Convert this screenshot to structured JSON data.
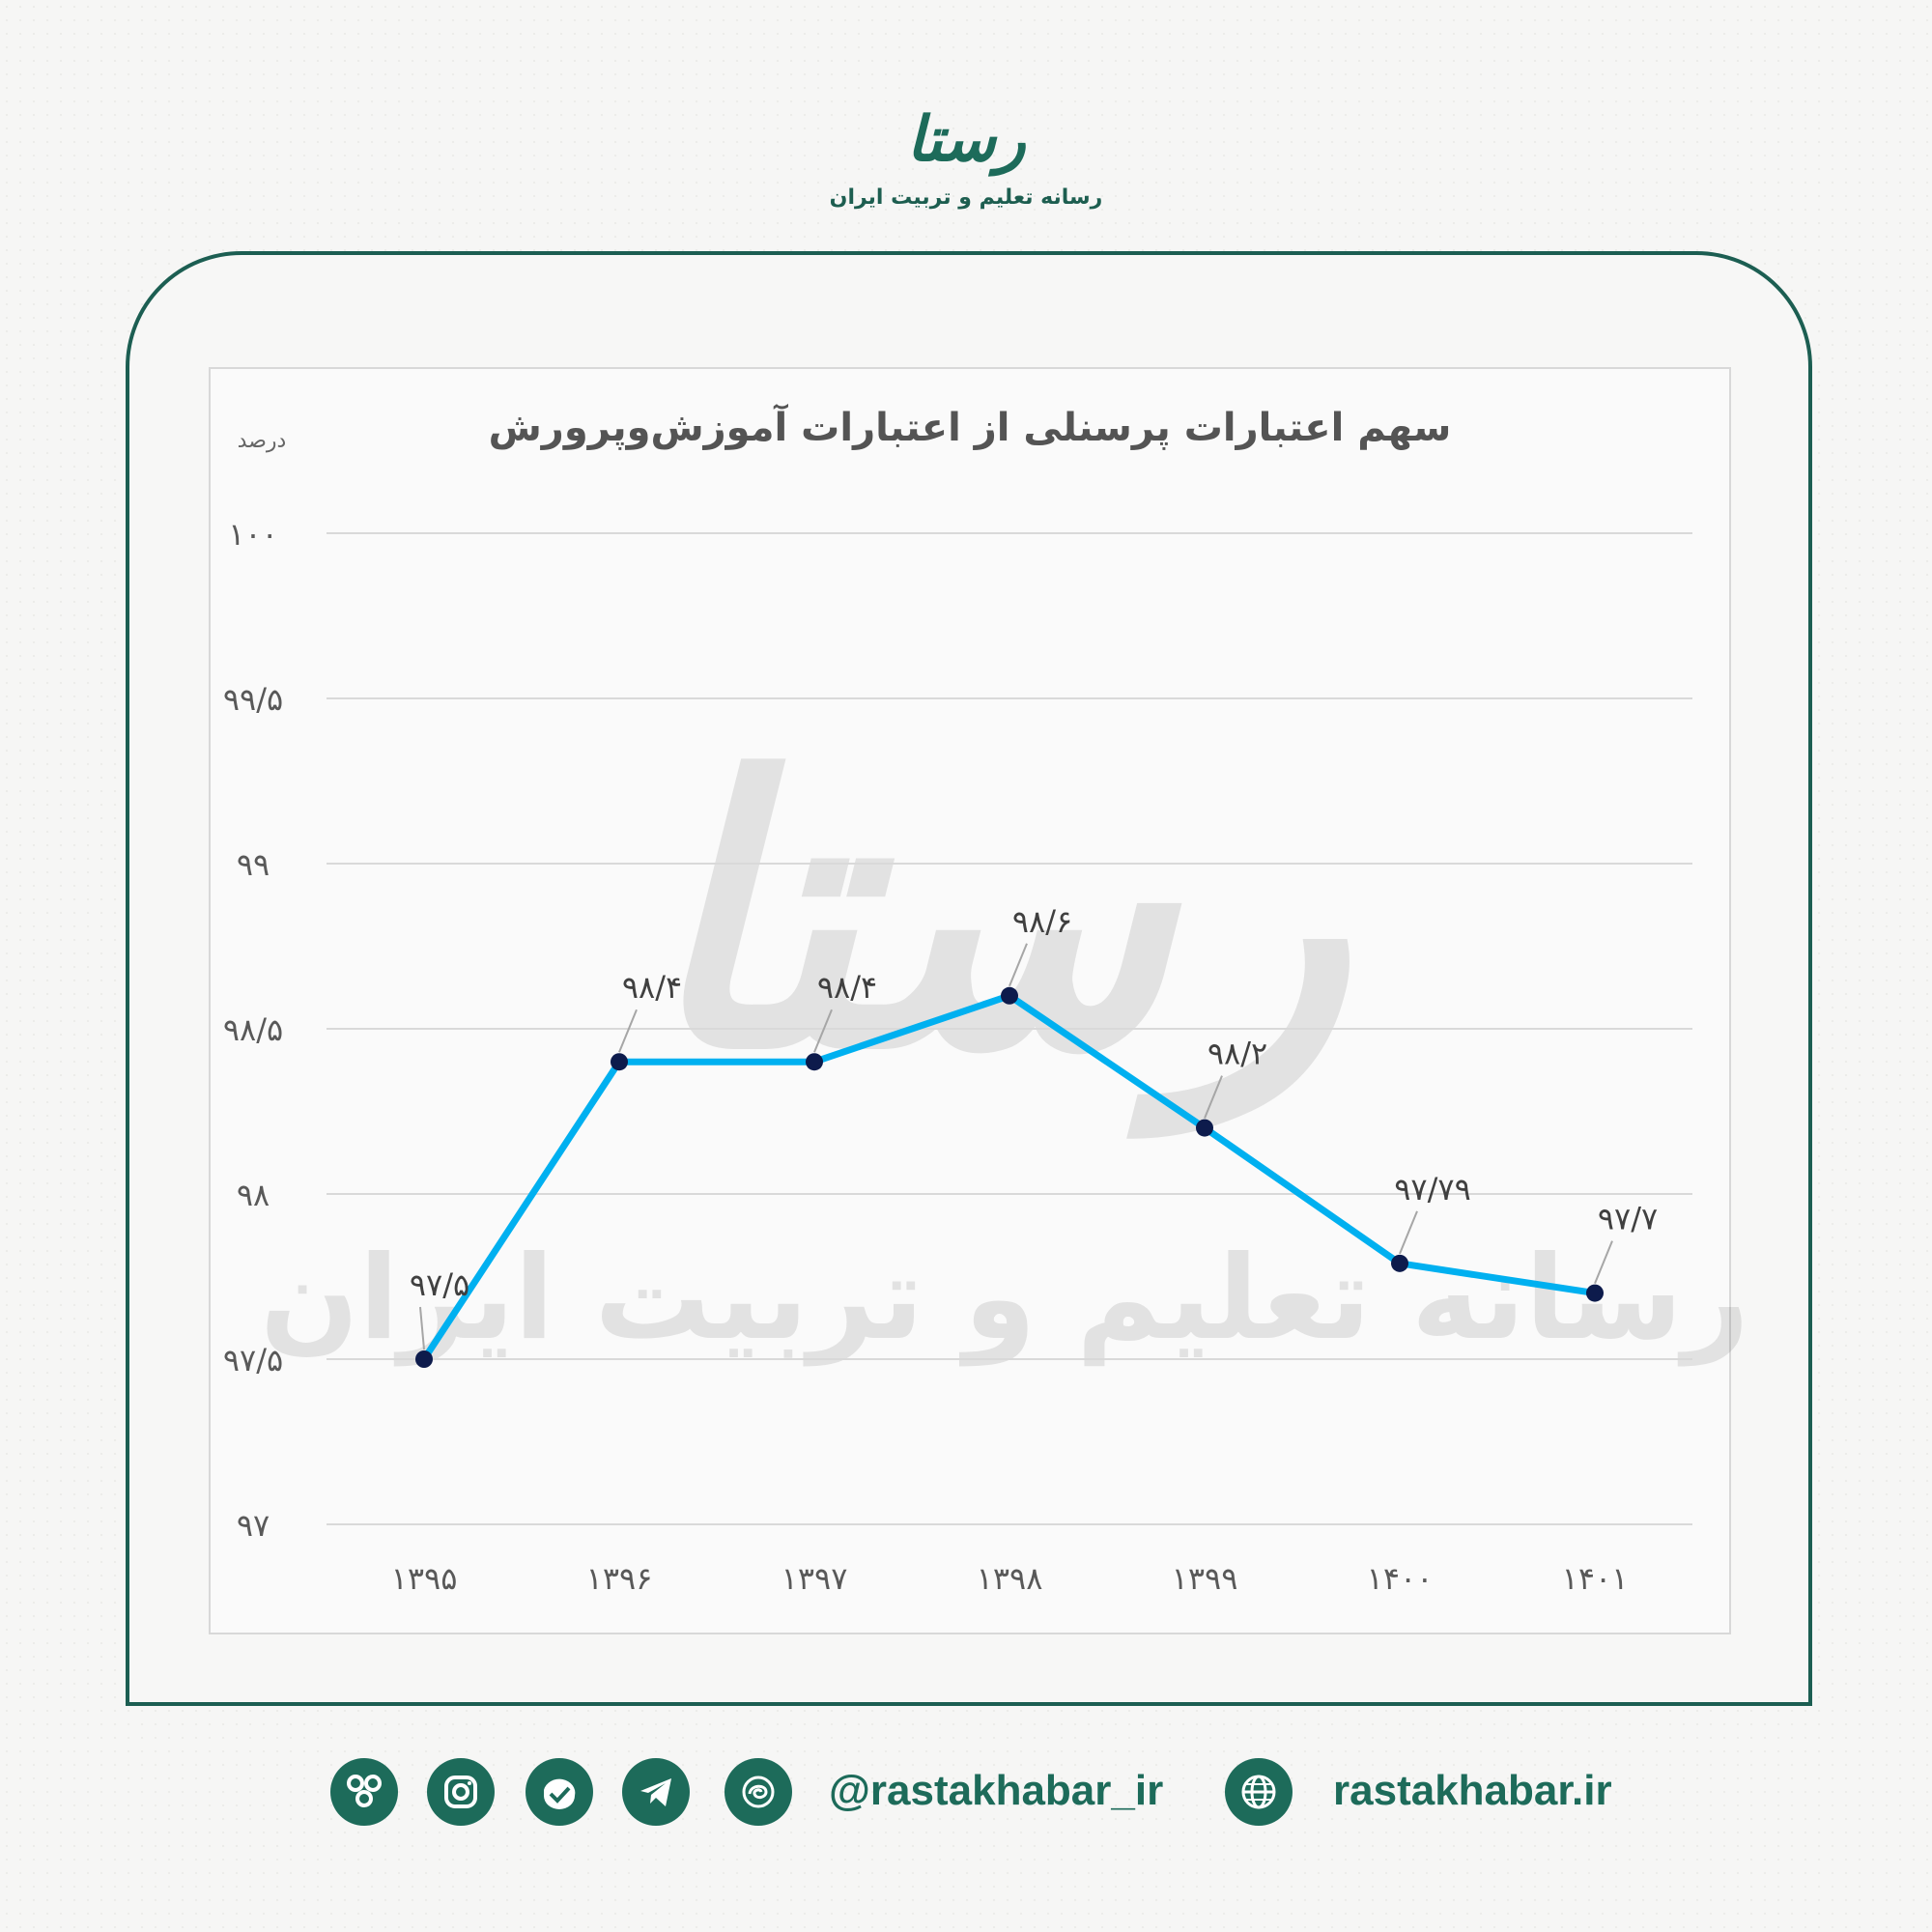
{
  "logo": {
    "mark": "رستا",
    "subtitle": "رسانه تعلیم و تربیت ایران"
  },
  "watermark": {
    "mark": "رستا",
    "subtitle": "رسانه تعلیم و تربیت ایران"
  },
  "chart_data": {
    "type": "line",
    "title": "سهم اعتبارات پرسنلی از اعتبارات آموزش‌وپرورش",
    "ylabel": "درصد",
    "xlabel": "",
    "categories": [
      "۱۳۹۵",
      "۱۳۹۶",
      "۱۳۹۷",
      "۱۳۹۸",
      "۱۳۹۹",
      "۱۴۰۰",
      "۱۴۰۱"
    ],
    "values": [
      97.5,
      98.4,
      98.4,
      98.6,
      98.2,
      97.79,
      97.7
    ],
    "data_labels": [
      "۹۷/۵",
      "۹۸/۴",
      "۹۸/۴",
      "۹۸/۶",
      "۹۸/۲",
      "۹۷/۷۹",
      "۹۷/۷"
    ],
    "ylim": [
      97,
      100
    ],
    "yticks": [
      97,
      97.5,
      98,
      98.5,
      99,
      99.5,
      100
    ],
    "ytick_labels": [
      "۹۷",
      "۹۷/۵",
      "۹۸",
      "۹۸/۵",
      "۹۹",
      "۹۹/۵",
      "۱۰۰"
    ],
    "grid": true,
    "line_color": "#00b0f0",
    "marker_color": "#0d1b4c"
  },
  "footer": {
    "handle": "@rastakhabar_ir",
    "website": "rastakhabar.ir",
    "icons": [
      "rubika-icon",
      "instagram-icon",
      "bale-icon",
      "telegram-icon",
      "eitaa-icon",
      "globe-icon"
    ]
  },
  "colors": {
    "brand": "#1d6b5a",
    "frame": "#1c5e52"
  }
}
